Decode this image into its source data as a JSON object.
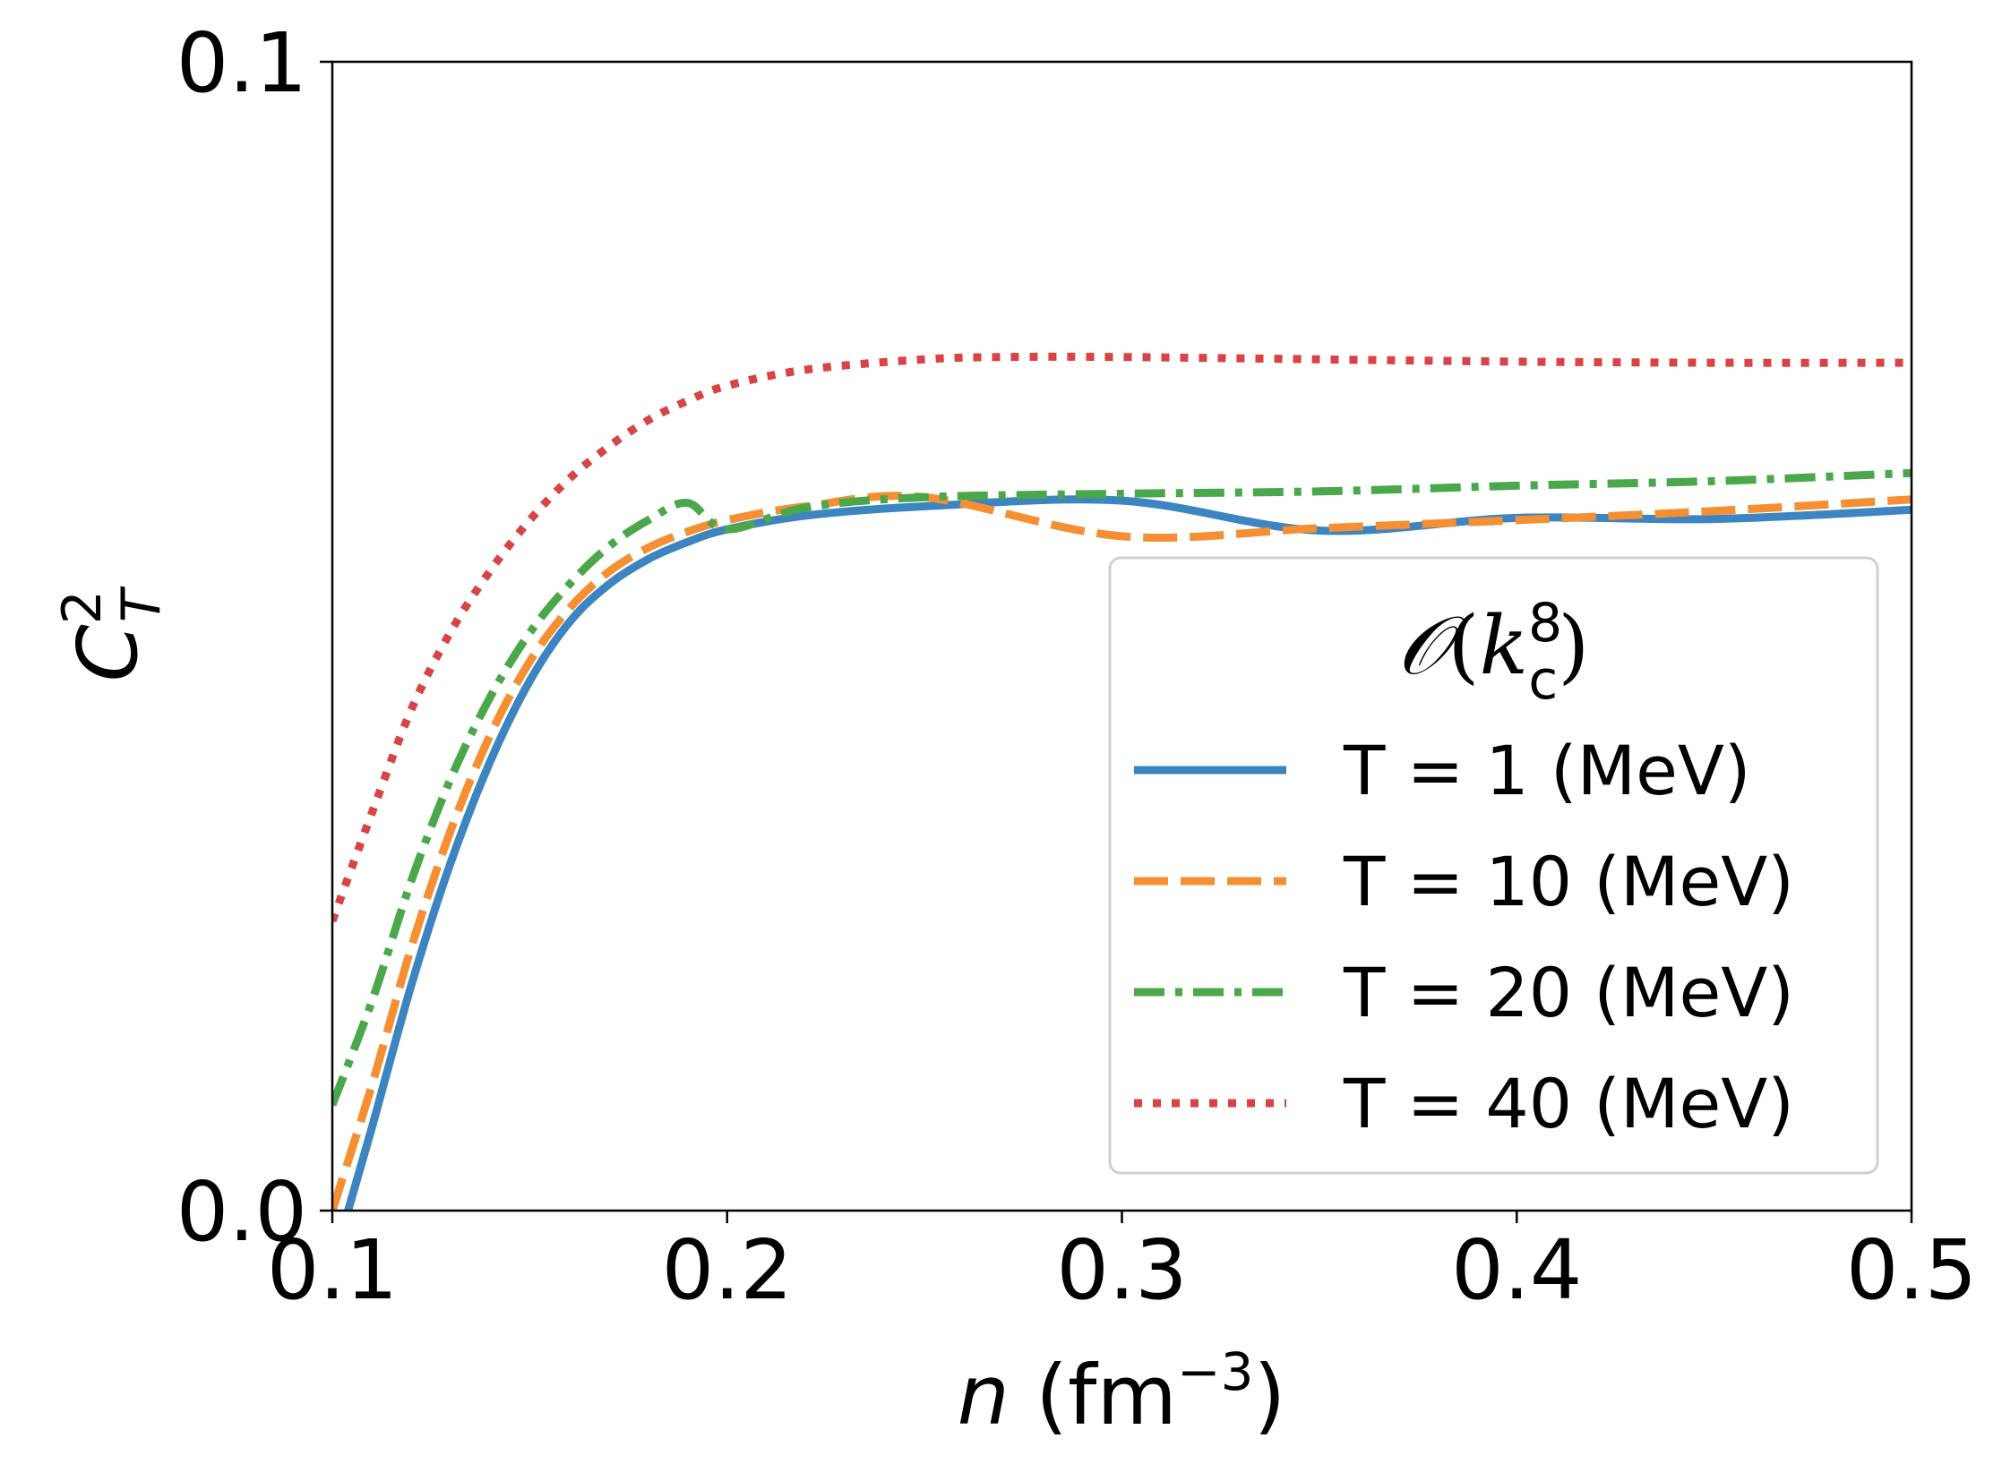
{
  "chart_data": {
    "type": "line",
    "xlabel": {
      "italic": "n",
      "text": " (fm",
      "sup": "−3",
      "close": ")"
    },
    "ylabel": {
      "base": "C",
      "sub": "T",
      "sup": "2"
    },
    "xlim": [
      0.1,
      0.5
    ],
    "ylim": [
      0.0,
      0.1
    ],
    "xticks": [
      0.1,
      0.2,
      0.3,
      0.4,
      0.5
    ],
    "xtick_labels": [
      "0.1",
      "0.2",
      "0.3",
      "0.4",
      "0.5"
    ],
    "yticks": [
      0.0,
      0.1
    ],
    "ytick_labels": [
      "0.0",
      "0.1"
    ],
    "grid": false,
    "legend": {
      "placement": "lower-right",
      "title": {
        "script": "𝒪",
        "open": "(",
        "italic": "k",
        "sub": "c",
        "sup": "8",
        "close": ")"
      }
    },
    "series": [
      {
        "name": "T = 1 (MeV)",
        "color": "#3d85c0",
        "style": "solid",
        "x": [
          0.104,
          0.11,
          0.12,
          0.13,
          0.14,
          0.15,
          0.16,
          0.17,
          0.18,
          0.19,
          0.2,
          0.22,
          0.25,
          0.3,
          0.35,
          0.4,
          0.45,
          0.5
        ],
        "y": [
          0.0,
          0.0072,
          0.0196,
          0.0303,
          0.0391,
          0.0461,
          0.0512,
          0.0545,
          0.0567,
          0.0582,
          0.0593,
          0.0605,
          0.0613,
          0.0618,
          0.0592,
          0.0603,
          0.0602,
          0.061
        ]
      },
      {
        "name": "T = 10 (MeV)",
        "color": "#f58f32",
        "style": "dashed",
        "x": [
          0.1,
          0.11,
          0.12,
          0.13,
          0.14,
          0.15,
          0.16,
          0.17,
          0.18,
          0.19,
          0.2,
          0.22,
          0.25,
          0.3,
          0.35,
          0.4,
          0.45,
          0.5
        ],
        "y": [
          0.0,
          0.0109,
          0.0229,
          0.0331,
          0.0414,
          0.0478,
          0.0524,
          0.0556,
          0.0577,
          0.0591,
          0.0601,
          0.0613,
          0.0621,
          0.0587,
          0.0594,
          0.0601,
          0.0609,
          0.0619
        ]
      },
      {
        "name": "T = 20 (MeV)",
        "color": "#4aa84a",
        "style": "dashdot",
        "x": [
          0.1,
          0.11,
          0.12,
          0.13,
          0.14,
          0.15,
          0.16,
          0.17,
          0.18,
          0.19,
          0.2,
          0.22,
          0.25,
          0.3,
          0.35,
          0.4,
          0.45,
          0.5
        ],
        "y": [
          0.0092,
          0.0182,
          0.0287,
          0.0376,
          0.0447,
          0.0503,
          0.0545,
          0.0578,
          0.0601,
          0.0616,
          0.0593,
          0.0612,
          0.0621,
          0.0624,
          0.0626,
          0.0631,
          0.0635,
          0.0642
        ]
      },
      {
        "name": "T = 40 (MeV)",
        "color": "#d94343",
        "style": "dotted",
        "x": [
          0.1,
          0.11,
          0.12,
          0.13,
          0.14,
          0.15,
          0.16,
          0.17,
          0.18,
          0.19,
          0.2,
          0.22,
          0.25,
          0.27,
          0.3,
          0.35,
          0.4,
          0.45,
          0.5
        ],
        "y": [
          0.0252,
          0.0346,
          0.0436,
          0.0504,
          0.0557,
          0.0601,
          0.0637,
          0.0665,
          0.0688,
          0.0705,
          0.0718,
          0.0732,
          0.0741,
          0.0743,
          0.0743,
          0.0741,
          0.0739,
          0.0738,
          0.0738
        ]
      }
    ]
  }
}
